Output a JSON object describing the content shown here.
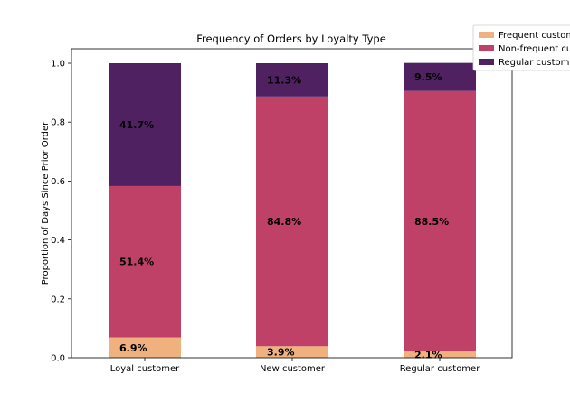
{
  "chart_data": {
    "type": "bar",
    "stacked": true,
    "title": "Frequency of Orders by Loyalty Type",
    "xlabel": "",
    "ylabel": "Proportion of Days Since Prior Order",
    "ylim": [
      0,
      1.0
    ],
    "yticks": [
      "0.0",
      "0.2",
      "0.4",
      "0.6",
      "0.8",
      "1.0"
    ],
    "grid": false,
    "legend_position": "top-right",
    "categories": [
      "Loyal customer",
      "New customer",
      "Regular customer"
    ],
    "series": [
      {
        "name": "Frequent customer",
        "legend_label": "Frequent custome",
        "color": "#efb27f",
        "values": [
          0.069,
          0.039,
          0.021
        ],
        "labels": [
          "6.9%",
          "3.9%",
          "2.1%"
        ]
      },
      {
        "name": "Non-frequent customer",
        "legend_label": "Non-frequent cust",
        "color": "#c04167",
        "values": [
          0.514,
          0.848,
          0.885
        ],
        "labels": [
          "51.4%",
          "84.8%",
          "88.5%"
        ]
      },
      {
        "name": "Regular customer",
        "legend_label": "Regular customer",
        "color": "#4f2161",
        "values": [
          0.417,
          0.113,
          0.095
        ],
        "labels": [
          "41.7%",
          "11.3%",
          "9.5%"
        ]
      }
    ]
  }
}
